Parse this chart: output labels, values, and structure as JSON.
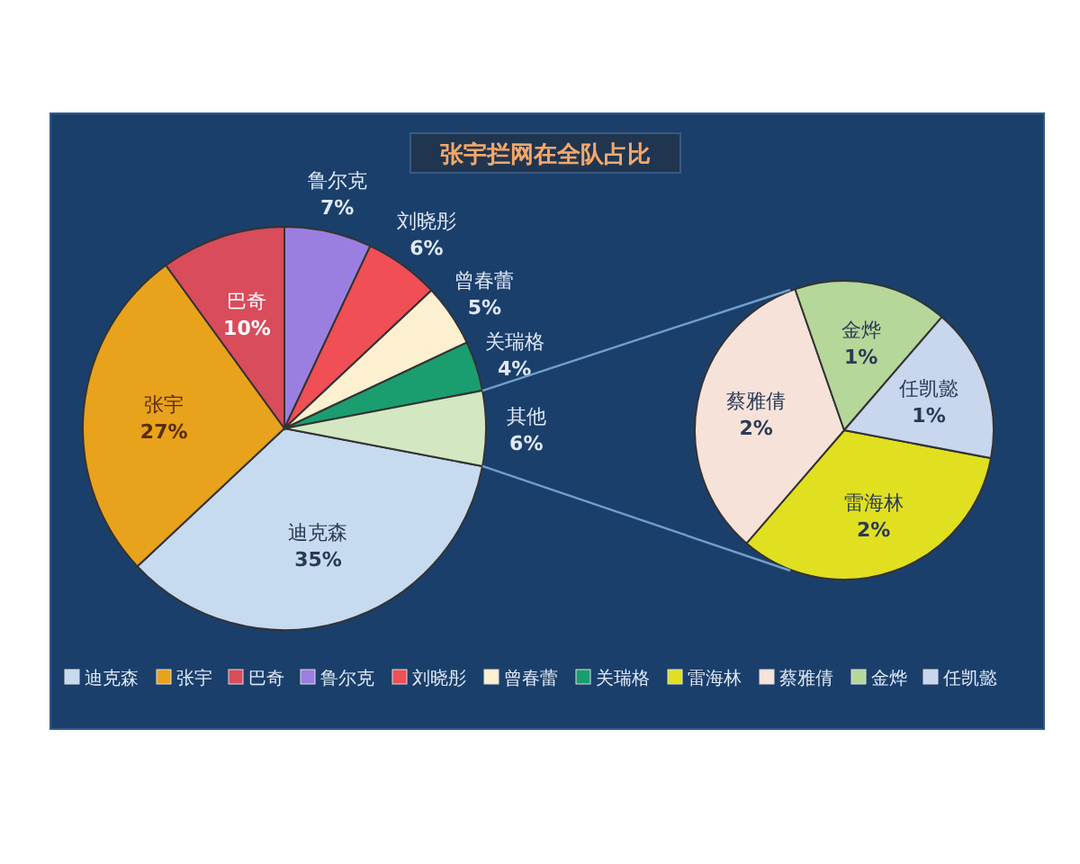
{
  "chart_data": [
    {
      "type": "pie",
      "title": "张宇拦网在全队占比",
      "categories": [
        "迪克森",
        "张宇",
        "巴奇",
        "鲁尔克",
        "刘晓彤",
        "曾春蕾",
        "关瑞格",
        "其他"
      ],
      "values": [
        35,
        27,
        10,
        7,
        6,
        5,
        4,
        6
      ],
      "colors": [
        "#c6daf0",
        "#e8a21c",
        "#d94c5c",
        "#9b7fe0",
        "#ef4f55",
        "#fdf0d0",
        "#1a9e6f",
        "#d3e8c2"
      ],
      "value_labels": [
        "35%",
        "27%",
        "10%",
        "7%",
        "6%",
        "5%",
        "4%",
        "6%"
      ],
      "legend": "bottom"
    },
    {
      "type": "pie",
      "categories": [
        "雷海林",
        "蔡雅倩",
        "金烨",
        "任凯懿"
      ],
      "values": [
        2,
        2,
        1,
        1
      ],
      "colors": [
        "#e0e020",
        "#f7e2d9",
        "#b6d79a",
        "#c8d6ee"
      ],
      "value_labels": [
        "2%",
        "2%",
        "1%",
        "1%"
      ],
      "legend": "bottom"
    }
  ]
}
